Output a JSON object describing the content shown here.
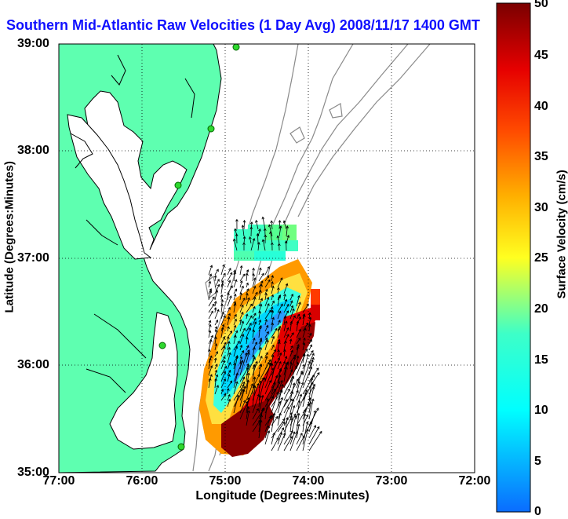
{
  "title": "Southern Mid-Atlantic Raw Velocities (1 Day Avg) 2008/11/17 1400 GMT",
  "axes": {
    "x_title": "Longitude (Degrees:Minutes)",
    "y_title": "Latitude (Degrees:Minutes)",
    "x_ticks": [
      "77:00",
      "76:00",
      "75:00",
      "74:00",
      "73:00",
      "72:00"
    ],
    "y_ticks": [
      "39:00",
      "38:00",
      "37:00",
      "36:00",
      "35:00"
    ]
  },
  "colorbar": {
    "title": "Surface Velocity (cm/s)",
    "ticks": [
      "50",
      "45",
      "40",
      "35",
      "30",
      "25",
      "20",
      "15",
      "10",
      "5",
      "0"
    ],
    "range": [
      0,
      50
    ]
  },
  "map": {
    "type": "ocean-current-map",
    "lon_range": [
      -77,
      -72
    ],
    "lat_range": [
      35,
      39
    ],
    "grid": true,
    "colors": {
      "land": "#5effb0",
      "water": "#ffffff",
      "coastline": "#000000",
      "bathymetry": "#8a8a8a",
      "station": "#2ed82e",
      "vectors": "#000000",
      "title": "#1010ff"
    }
  }
}
